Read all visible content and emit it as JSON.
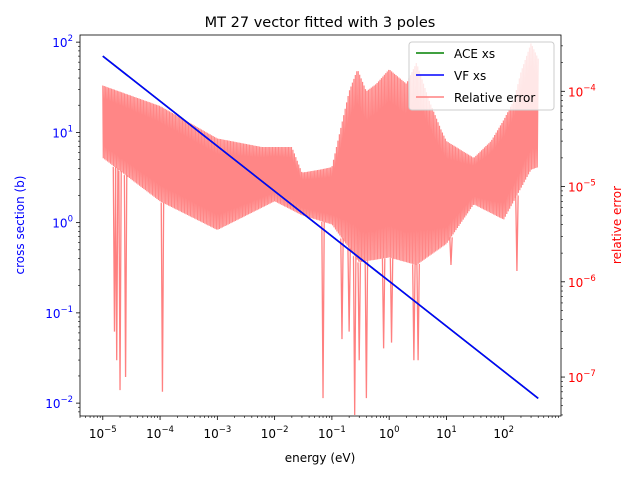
{
  "chart_data": {
    "type": "line",
    "title": "MT 27 vector fitted with 3 poles",
    "xlabel": "energy (eV)",
    "ylabel": "cross section (b)",
    "y2label": "relative error",
    "xscale": "log",
    "yscale": "log",
    "y2scale": "log",
    "xlim": [
      4e-06,
      1000
    ],
    "ylim": [
      0.0072,
      120
    ],
    "y2lim": [
      3.9e-08,
      0.00039
    ],
    "grid": false,
    "legend_placement": "top-right",
    "x_ticks": [
      {
        "value": 1e-05,
        "base": "10",
        "exp": "−5"
      },
      {
        "value": 0.0001,
        "base": "10",
        "exp": "−4"
      },
      {
        "value": 0.001,
        "base": "10",
        "exp": "−3"
      },
      {
        "value": 0.01,
        "base": "10",
        "exp": "−2"
      },
      {
        "value": 0.1,
        "base": "10",
        "exp": "−1"
      },
      {
        "value": 1,
        "base": "10",
        "exp": "0"
      },
      {
        "value": 10,
        "base": "10",
        "exp": "1"
      },
      {
        "value": 100,
        "base": "10",
        "exp": "2"
      }
    ],
    "y_ticks": [
      {
        "value": 0.01,
        "base": "10",
        "exp": "−2"
      },
      {
        "value": 0.1,
        "base": "10",
        "exp": "−1"
      },
      {
        "value": 1,
        "base": "10",
        "exp": "0"
      },
      {
        "value": 10,
        "base": "10",
        "exp": "1"
      },
      {
        "value": 100,
        "base": "10",
        "exp": "2"
      }
    ],
    "y2_ticks": [
      {
        "value": 1e-07,
        "base": "10",
        "exp": "−7"
      },
      {
        "value": 1e-06,
        "base": "10",
        "exp": "−6"
      },
      {
        "value": 1e-05,
        "base": "10",
        "exp": "−5"
      },
      {
        "value": 0.0001,
        "base": "10",
        "exp": "−4"
      }
    ],
    "series": [
      {
        "name": "ACE xs",
        "color": "#008000",
        "axis": "left",
        "x": [
          1e-05,
          400
        ],
        "y": [
          70,
          0.0113
        ]
      },
      {
        "name": "VF xs",
        "color": "#0000ff",
        "axis": "left",
        "x": [
          1e-05,
          400
        ],
        "y": [
          70,
          0.0113
        ]
      },
      {
        "name": "Relative error",
        "color": "#ff8080",
        "axis": "right",
        "x_range": [
          1e-05,
          400
        ],
        "upper_envelope": {
          "x": [
            1e-05,
            0.0001,
            0.001,
            0.006,
            0.02,
            0.03,
            0.06,
            0.1,
            0.2,
            0.28,
            0.4,
            0.6,
            1,
            2,
            3,
            5,
            8,
            10,
            30,
            60,
            100,
            150,
            200,
            300,
            400
          ],
          "y": [
            0.000115,
            7e-05,
            3.2e-05,
            2.6e-05,
            2.6e-05,
            1.4e-05,
            1.5e-05,
            1.6e-05,
            0.0001,
            0.00017,
            0.0001,
            0.00012,
            0.00017,
            0.00012,
            0.0002,
            8e-05,
            4e-05,
            3e-05,
            2e-05,
            3e-05,
            5e-05,
            8e-05,
            0.00016,
            0.00032,
            0.00022
          ]
        },
        "lower_envelope": {
          "x": [
            1e-05,
            0.0001,
            0.001,
            0.01,
            0.03,
            0.1,
            0.3,
            1,
            3,
            10,
            30,
            100,
            300,
            400
          ],
          "y": [
            2e-05,
            7e-06,
            3.5e-06,
            7e-06,
            5e-06,
            4e-06,
            1.6e-06,
            1.8e-06,
            1.5e-06,
            2.5e-06,
            6.5e-06,
            4.5e-06,
            1.5e-05,
            1.6e-05
          ]
        },
        "dips": [
          {
            "x": 1.6e-05,
            "y": 3e-07
          },
          {
            "x": 1.75e-05,
            "y": 1.5e-07
          },
          {
            "x": 2e-05,
            "y": 7.3e-08
          },
          {
            "x": 2.5e-05,
            "y": 1e-07
          },
          {
            "x": 0.00011,
            "y": 7e-08
          },
          {
            "x": 0.07,
            "y": 6e-08
          },
          {
            "x": 0.15,
            "y": 2.5e-07
          },
          {
            "x": 0.2,
            "y": 3e-07
          },
          {
            "x": 0.25,
            "y": 4e-08
          },
          {
            "x": 0.3,
            "y": 1.5e-07
          },
          {
            "x": 0.4,
            "y": 6e-08
          },
          {
            "x": 0.8,
            "y": 2e-07
          },
          {
            "x": 1.1,
            "y": 2.3e-07
          },
          {
            "x": 2.7,
            "y": 1.5e-07
          },
          {
            "x": 3.2,
            "y": 1.5e-07
          },
          {
            "x": 12,
            "y": 1.5e-06
          },
          {
            "x": 170,
            "y": 1.3e-06
          }
        ]
      }
    ]
  }
}
